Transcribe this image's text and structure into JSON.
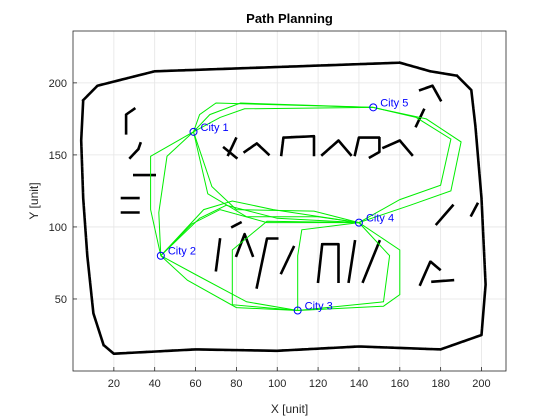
{
  "chart_data": {
    "type": "scatter",
    "title": "Path Planning",
    "xlabel": "X [unit]",
    "ylabel": "Y [unit]",
    "xlim": [
      0,
      212
    ],
    "ylim": [
      0,
      236
    ],
    "grid": true,
    "xticks": [
      20,
      40,
      60,
      80,
      100,
      120,
      140,
      160,
      180,
      200
    ],
    "yticks": [
      50,
      100,
      150,
      200
    ],
    "colors": {
      "cities": "#0000ff",
      "paths": "#00ee00",
      "map": "#000000",
      "grid": "#e5e5e5"
    },
    "cities": [
      {
        "label": "City 1",
        "x": 59,
        "y": 166
      },
      {
        "label": "City 2",
        "x": 43,
        "y": 80
      },
      {
        "label": "City 3",
        "x": 110,
        "y": 42
      },
      {
        "label": "City 4",
        "x": 140,
        "y": 103
      },
      {
        "label": "City 5",
        "x": 147,
        "y": 183
      }
    ],
    "paths": [
      [
        [
          59,
          166
        ],
        [
          67,
          178
        ],
        [
          82,
          186
        ],
        [
          147,
          183
        ]
      ],
      [
        [
          59,
          166
        ],
        [
          72,
          176
        ],
        [
          84,
          182
        ],
        [
          147,
          183
        ]
      ],
      [
        [
          147,
          183
        ],
        [
          168,
          176
        ],
        [
          185,
          161
        ],
        [
          180,
          129
        ],
        [
          160,
          119
        ],
        [
          140,
          103
        ]
      ],
      [
        [
          147,
          183
        ],
        [
          173,
          175
        ],
        [
          190,
          159
        ],
        [
          185,
          125
        ],
        [
          165,
          115
        ],
        [
          140,
          103
        ]
      ],
      [
        [
          140,
          103
        ],
        [
          160,
          84
        ],
        [
          160,
          53
        ],
        [
          152,
          45
        ],
        [
          110,
          42
        ]
      ],
      [
        [
          140,
          103
        ],
        [
          155,
          80
        ],
        [
          152,
          48
        ],
        [
          110,
          42
        ]
      ],
      [
        [
          110,
          42
        ],
        [
          80,
          44
        ],
        [
          56,
          63
        ],
        [
          43,
          80
        ]
      ],
      [
        [
          110,
          42
        ],
        [
          85,
          48
        ],
        [
          60,
          67
        ],
        [
          43,
          80
        ]
      ],
      [
        [
          43,
          80
        ],
        [
          38,
          112
        ],
        [
          38,
          149
        ],
        [
          59,
          166
        ]
      ],
      [
        [
          43,
          80
        ],
        [
          42,
          110
        ],
        [
          46,
          149
        ],
        [
          59,
          166
        ]
      ],
      [
        [
          140,
          103
        ],
        [
          120,
          107
        ],
        [
          85,
          107
        ],
        [
          66,
          123
        ],
        [
          59,
          166
        ]
      ],
      [
        [
          140,
          103
        ],
        [
          118,
          111
        ],
        [
          80,
          112
        ],
        [
          68,
          128
        ],
        [
          59,
          166
        ]
      ],
      [
        [
          43,
          80
        ],
        [
          58,
          102
        ],
        [
          72,
          112
        ],
        [
          95,
          103
        ],
        [
          120,
          103
        ],
        [
          140,
          103
        ]
      ],
      [
        [
          43,
          80
        ],
        [
          62,
          106
        ],
        [
          75,
          115
        ],
        [
          100,
          106
        ],
        [
          140,
          103
        ]
      ],
      [
        [
          43,
          80
        ],
        [
          64,
          112
        ],
        [
          78,
          118
        ],
        [
          98,
          112
        ],
        [
          140,
          103
        ]
      ],
      [
        [
          110,
          42
        ],
        [
          110,
          80
        ],
        [
          112,
          98
        ],
        [
          140,
          103
        ]
      ],
      [
        [
          110,
          42
        ],
        [
          78,
          46
        ],
        [
          78,
          84
        ],
        [
          95,
          104
        ],
        [
          140,
          103
        ]
      ],
      [
        [
          59,
          166
        ],
        [
          62,
          178
        ],
        [
          70,
          186
        ],
        [
          147,
          183
        ]
      ]
    ]
  }
}
